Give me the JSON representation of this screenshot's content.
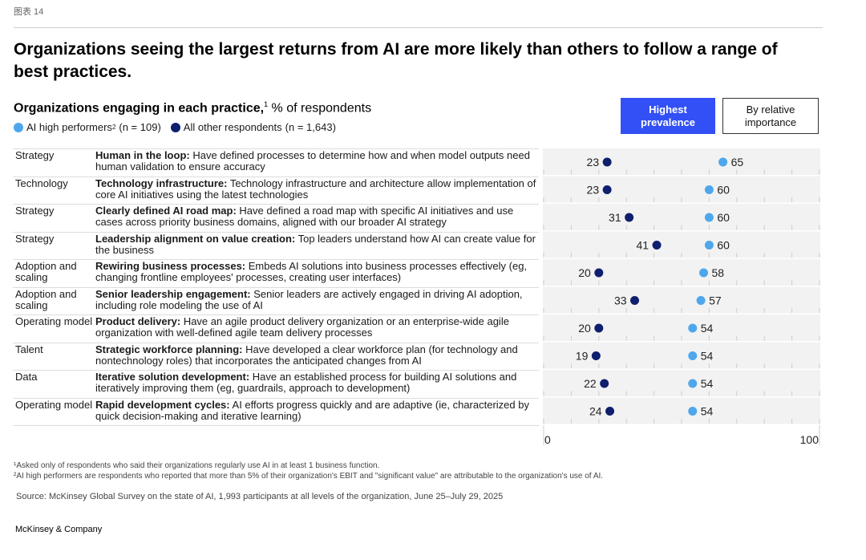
{
  "figure_label": "图表 14",
  "title": "Organizations seeing the largest returns from AI are more likely than others to follow a range of best practices.",
  "subtitle_bold": "Organizations engaging in each practice,",
  "subtitle_sup": "1",
  "subtitle_rest": " % of respondents",
  "buttons": {
    "highest": "Highest prevalence",
    "relative": "By relative importance"
  },
  "colors": {
    "high": "#4ea7ec",
    "other": "#0f1f6e",
    "button": "#3250f5"
  },
  "chart_data": {
    "type": "scatter",
    "title": "Organizations engaging in each practice, % of respondents",
    "xlim": [
      0,
      100
    ],
    "xticks": [
      "0",
      "100"
    ],
    "legend": [
      {
        "name": "AI high performers",
        "sup": "2",
        "n": "(n = 109)"
      },
      {
        "name": "All other respondents",
        "n": "(n = 1,643)"
      }
    ],
    "rows": [
      {
        "category": "Strategy",
        "label": "Human in the loop:",
        "text": " Have defined processes to determine how and when model outputs need human validation to ensure accuracy",
        "high": 65,
        "other": 23
      },
      {
        "category": "Technology",
        "label": "Technology infrastructure:",
        "text": " Technology infrastructure and architecture allow implementation of core AI initiatives using the latest technologies",
        "high": 60,
        "other": 23
      },
      {
        "category": "Strategy",
        "label": "Clearly defined AI road map:",
        "text": " Have defined a road map with specific AI initiatives and use cases across priority business domains, aligned with our broader AI strategy",
        "high": 60,
        "other": 31
      },
      {
        "category": "Strategy",
        "label": "Leadership alignment on value creation:",
        "text": " Top leaders understand how AI can create value for the business",
        "high": 60,
        "other": 41
      },
      {
        "category": "Adoption and scaling",
        "label": "Rewiring business processes:",
        "text": " Embeds AI solutions into business processes effectively (eg, changing frontline employees' processes, creating user interfaces)",
        "high": 58,
        "other": 20
      },
      {
        "category": "Adoption and scaling",
        "label": "Senior leadership engagement:",
        "text": " Senior leaders are actively engaged in driving AI adoption, including role modeling the use of AI",
        "high": 57,
        "other": 33
      },
      {
        "category": "Operating model",
        "label": "Product delivery:",
        "text": " Have an agile product delivery organization or an enterprise-wide agile organization with well-defined agile team delivery processes",
        "high": 54,
        "other": 20
      },
      {
        "category": "Talent",
        "label": "Strategic workforce planning:",
        "text": " Have developed a clear workforce plan (for technology and nontechnology roles) that incorporates the anticipated changes from AI",
        "high": 54,
        "other": 19
      },
      {
        "category": "Data",
        "label": "Iterative solution development:",
        "text": " Have an established process for building AI solutions and iteratively improving them (eg, guardrails, approach to development)",
        "high": 54,
        "other": 22
      },
      {
        "category": "Operating model",
        "label": "Rapid development cycles:",
        "text": " AI efforts progress quickly and are adaptive (ie, characterized by quick decision-making and iterative learning)",
        "high": 54,
        "other": 24
      }
    ]
  },
  "footnotes": [
    "¹Asked only of respondents who said their organizations regularly use AI in at least 1 business function.",
    "²AI high performers are respondents who reported that more than 5% of their organization's EBIT and \"significant value\" are attributable to the organization's use of AI."
  ],
  "source": "Source: McKinsey Global Survey on the state of AI, 1,993 participants at all levels of the organization, June 25–July 29, 2025",
  "brand": "McKinsey & Company"
}
